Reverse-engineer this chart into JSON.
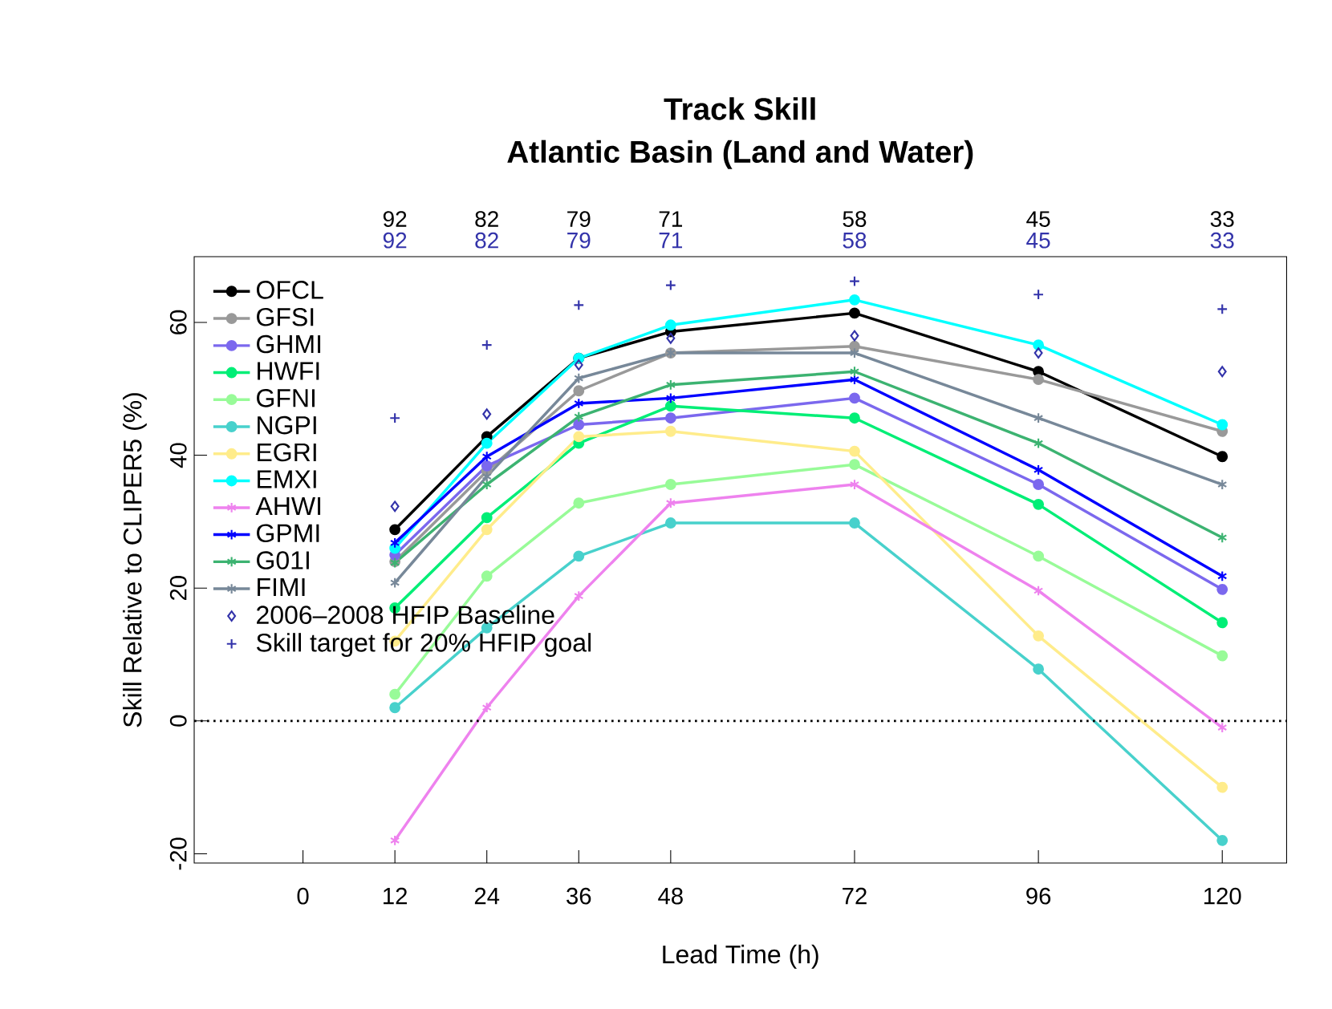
{
  "chart_data": {
    "type": "line",
    "title": "Track Skill",
    "subtitle": "Atlantic Basin   (Land and Water)",
    "xlabel": "Lead Time (h)",
    "ylabel": "Skill Relative to CLIPER5 (%)",
    "x": [
      12,
      24,
      36,
      48,
      72,
      96,
      120
    ],
    "xlim": [
      -14.2,
      128.4
    ],
    "ylim": [
      -21.4,
      69.9
    ],
    "xticks": [
      0,
      12,
      24,
      36,
      48,
      72,
      96,
      120
    ],
    "yticks": [
      -20,
      0,
      20,
      40,
      60
    ],
    "annotations": [
      "92",
      "82",
      "79",
      "71",
      "58",
      "45",
      "33",
      "92",
      "82",
      "79",
      "71",
      "58",
      "45",
      "33"
    ],
    "series": [
      {
        "name": "OFCL",
        "color": "#000000",
        "marker": "circle",
        "values": [
          28.8,
          42.8,
          54.6,
          58.6,
          61.4,
          52.6,
          39.8
        ]
      },
      {
        "name": "GFSI",
        "color": "#999999",
        "marker": "circle",
        "values": [
          24,
          37.6,
          49.7,
          55.4,
          56.4,
          51.4,
          43.6
        ]
      },
      {
        "name": "GHMI",
        "color": "#7b68ee",
        "marker": "circle",
        "values": [
          25,
          38.4,
          44.6,
          45.6,
          48.6,
          35.6,
          19.8
        ]
      },
      {
        "name": "HWFI",
        "color": "#00ee76",
        "marker": "circle",
        "values": [
          17,
          30.6,
          41.8,
          47.4,
          45.6,
          32.6,
          14.8
        ]
      },
      {
        "name": "GFNI",
        "color": "#98fb98",
        "marker": "circle",
        "values": [
          4,
          21.8,
          32.8,
          35.6,
          38.6,
          24.8,
          9.8
        ]
      },
      {
        "name": "NGPI",
        "color": "#48d1cc",
        "marker": "circle",
        "values": [
          2,
          14,
          24.8,
          29.8,
          29.8,
          7.8,
          -18
        ]
      },
      {
        "name": "EGRI",
        "color": "#ffec8b",
        "marker": "circle",
        "values": [
          12,
          28.8,
          42.8,
          43.6,
          40.6,
          12.8,
          -10
        ]
      },
      {
        "name": "EMXI",
        "color": "#00ffff",
        "marker": "circle",
        "values": [
          26,
          41.8,
          54.6,
          59.6,
          63.4,
          56.6,
          44.6
        ]
      },
      {
        "name": "AHWI",
        "color": "#ee82ee",
        "marker": "cross",
        "values": [
          -18,
          2,
          18.8,
          32.8,
          35.6,
          19.6,
          -1
        ]
      },
      {
        "name": "GPMI",
        "color": "#0000ff",
        "marker": "cross",
        "values": [
          26.8,
          39.8,
          47.8,
          48.6,
          51.4,
          37.8,
          21.8
        ]
      },
      {
        "name": "G01I",
        "color": "#3cb371",
        "marker": "cross",
        "values": [
          23.8,
          35.6,
          45.8,
          50.6,
          52.6,
          41.8,
          27.6
        ]
      },
      {
        "name": "FIMI",
        "color": "#778899",
        "marker": "cross",
        "values": [
          20.8,
          36.8,
          51.6,
          55.4,
          55.4,
          45.6,
          35.6
        ]
      },
      {
        "name": "2006–2008 HFIP Baseline",
        "type": "scatter",
        "color": "#3333aa",
        "marker": "diamond",
        "values": [
          32.3,
          46.2,
          53.6,
          57.6,
          58,
          55.4,
          52.6
        ]
      },
      {
        "name": "Skill target for 20% HFIP goal",
        "type": "scatter",
        "color": "#3333aa",
        "marker": "cross",
        "values": [
          45.6,
          56.6,
          62.6,
          65.6,
          66.2,
          64.2,
          62
        ]
      }
    ],
    "ref_lines": [
      {
        "axis": "y",
        "value": 0,
        "color": "#000000",
        "line_style": "dotted"
      }
    ],
    "legend": "top left",
    "grid": false
  }
}
